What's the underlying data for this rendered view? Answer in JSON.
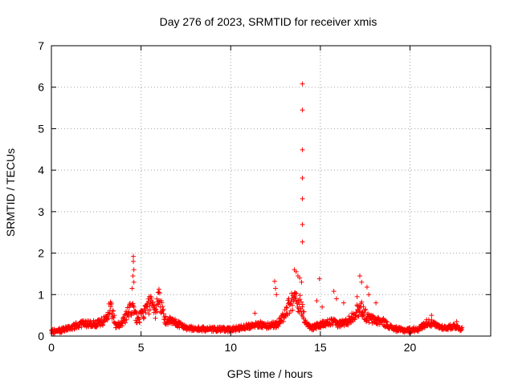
{
  "chart_data": {
    "type": "scatter",
    "title": "Day 276 of 2023, SRMTID for receiver xmis",
    "xlabel": "GPS time / hours",
    "ylabel": "SRMTID / TECUs",
    "xlim": [
      0,
      24.5
    ],
    "ylim": [
      0,
      7
    ],
    "xticks": [
      0,
      5,
      10,
      15,
      20
    ],
    "xtick_labels": [
      "0",
      "5",
      "10",
      "15",
      "20"
    ],
    "yticks": [
      0,
      1,
      2,
      3,
      4,
      5,
      6,
      7
    ],
    "ytick_labels": [
      "0",
      "1",
      "2",
      "3",
      "4",
      "5",
      "6",
      "7"
    ],
    "grid": true,
    "marker": "+",
    "color": "#ff0000",
    "series": [
      {
        "name": "SRMTID",
        "baseline": [
          [
            0.0,
            0.1
          ],
          [
            0.5,
            0.14
          ],
          [
            1.0,
            0.2
          ],
          [
            1.5,
            0.28
          ],
          [
            2.0,
            0.32
          ],
          [
            2.5,
            0.3
          ],
          [
            3.0,
            0.4
          ],
          [
            3.3,
            0.75
          ],
          [
            3.6,
            0.25
          ],
          [
            4.0,
            0.35
          ],
          [
            4.3,
            0.6
          ],
          [
            4.5,
            0.7
          ],
          [
            4.8,
            0.4
          ],
          [
            5.2,
            0.6
          ],
          [
            5.5,
            0.8
          ],
          [
            5.8,
            0.6
          ],
          [
            6.0,
            1.0
          ],
          [
            6.3,
            0.4
          ],
          [
            6.8,
            0.35
          ],
          [
            7.2,
            0.28
          ],
          [
            7.6,
            0.2
          ],
          [
            8.0,
            0.18
          ],
          [
            9.0,
            0.17
          ],
          [
            10.0,
            0.16
          ],
          [
            11.0,
            0.25
          ],
          [
            11.5,
            0.3
          ],
          [
            12.0,
            0.25
          ],
          [
            12.6,
            0.3
          ],
          [
            13.0,
            0.5
          ],
          [
            13.3,
            0.8
          ],
          [
            13.6,
            0.9
          ],
          [
            13.9,
            0.8
          ],
          [
            14.2,
            0.3
          ],
          [
            14.5,
            0.2
          ],
          [
            14.8,
            0.25
          ],
          [
            15.2,
            0.3
          ],
          [
            15.6,
            0.35
          ],
          [
            16.0,
            0.3
          ],
          [
            16.5,
            0.35
          ],
          [
            17.0,
            0.6
          ],
          [
            17.3,
            0.7
          ],
          [
            17.6,
            0.45
          ],
          [
            18.0,
            0.4
          ],
          [
            18.5,
            0.35
          ],
          [
            19.0,
            0.2
          ],
          [
            19.5,
            0.15
          ],
          [
            20.0,
            0.15
          ],
          [
            20.5,
            0.18
          ],
          [
            21.0,
            0.35
          ],
          [
            21.5,
            0.25
          ],
          [
            22.0,
            0.2
          ],
          [
            22.5,
            0.25
          ],
          [
            22.9,
            0.17
          ]
        ],
        "outliers": [
          [
            4.57,
            1.92
          ],
          [
            4.57,
            1.8
          ],
          [
            4.6,
            1.6
          ],
          [
            4.55,
            1.45
          ],
          [
            4.6,
            1.3
          ],
          [
            4.5,
            1.15
          ],
          [
            6.0,
            1.13
          ],
          [
            5.95,
            1.05
          ],
          [
            11.35,
            0.55
          ],
          [
            12.45,
            1.32
          ],
          [
            12.5,
            1.15
          ],
          [
            12.55,
            1.0
          ],
          [
            13.55,
            1.6
          ],
          [
            13.65,
            1.55
          ],
          [
            13.75,
            1.45
          ],
          [
            13.85,
            1.4
          ],
          [
            13.95,
            1.3
          ],
          [
            14.0,
            6.08
          ],
          [
            14.0,
            5.45
          ],
          [
            14.0,
            4.49
          ],
          [
            14.0,
            3.81
          ],
          [
            14.0,
            3.31
          ],
          [
            14.0,
            2.69
          ],
          [
            14.0,
            2.27
          ],
          [
            14.95,
            1.38
          ],
          [
            14.8,
            0.85
          ],
          [
            15.1,
            0.7
          ],
          [
            15.75,
            1.08
          ],
          [
            15.9,
            0.9
          ],
          [
            16.3,
            0.8
          ],
          [
            17.05,
            0.95
          ],
          [
            17.2,
            1.45
          ],
          [
            17.3,
            1.3
          ],
          [
            17.6,
            1.18
          ],
          [
            17.7,
            1.0
          ],
          [
            18.1,
            0.8
          ],
          [
            21.2,
            0.5
          ],
          [
            22.6,
            0.35
          ]
        ],
        "count": 1150
      }
    ]
  }
}
